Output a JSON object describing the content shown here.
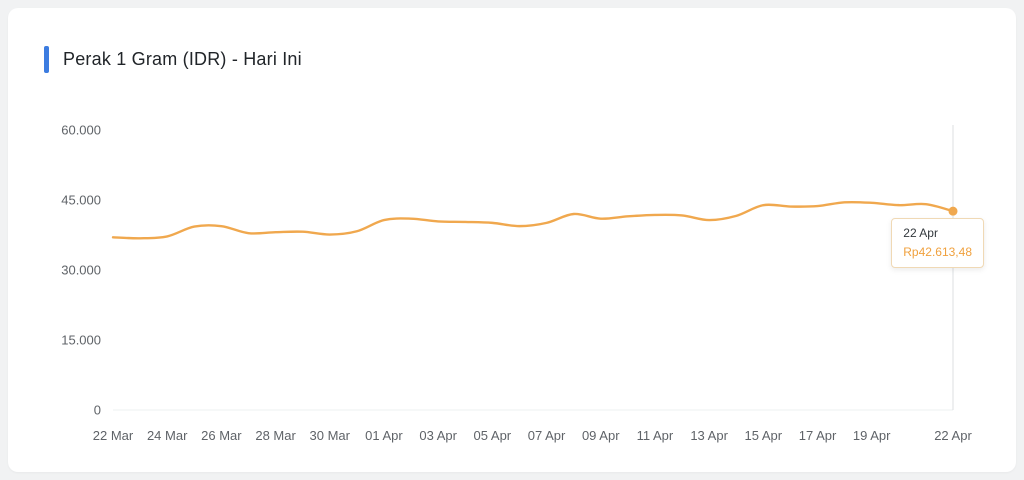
{
  "header": {
    "title": "Perak 1 Gram (IDR) - Hari Ini",
    "accent_color": "#3c7ce0"
  },
  "tooltip": {
    "date": "22 Apr",
    "value": "Rp42.613,48",
    "value_color": "#f0a13e"
  },
  "chart_data": {
    "type": "line",
    "title": "Perak 1 Gram (IDR) - Hari Ini",
    "x": [
      "22 Mar",
      "23 Mar",
      "24 Mar",
      "25 Mar",
      "26 Mar",
      "27 Mar",
      "28 Mar",
      "29 Mar",
      "30 Mar",
      "31 Mar",
      "01 Apr",
      "02 Apr",
      "03 Apr",
      "04 Apr",
      "05 Apr",
      "06 Apr",
      "07 Apr",
      "08 Apr",
      "09 Apr",
      "10 Apr",
      "11 Apr",
      "12 Apr",
      "13 Apr",
      "14 Apr",
      "15 Apr",
      "16 Apr",
      "17 Apr",
      "18 Apr",
      "19 Apr",
      "20 Apr",
      "21 Apr",
      "22 Apr"
    ],
    "values": [
      37000,
      36800,
      37200,
      39300,
      39400,
      37900,
      38100,
      38200,
      37600,
      38300,
      40700,
      41000,
      40400,
      40300,
      40100,
      39400,
      40100,
      42000,
      41000,
      41500,
      41800,
      41700,
      40700,
      41600,
      43900,
      43600,
      43700,
      44500,
      44400,
      43900,
      44100,
      42613.48
    ],
    "last_value_label": "Rp42.613,48",
    "ylim": [
      0,
      60000
    ],
    "yticks": [
      0,
      15000,
      30000,
      45000,
      60000
    ],
    "ytick_labels": [
      "0",
      "15.000",
      "30.000",
      "45.000",
      "60.000"
    ],
    "xtick_labels": [
      "22 Mar",
      "24 Mar",
      "26 Mar",
      "28 Mar",
      "30 Mar",
      "01 Apr",
      "03 Apr",
      "05 Apr",
      "07 Apr",
      "09 Apr",
      "11 Apr",
      "13 Apr",
      "15 Apr",
      "17 Apr",
      "19 Apr",
      "22 Apr"
    ],
    "xtick_indices": [
      0,
      2,
      4,
      6,
      8,
      10,
      12,
      14,
      16,
      18,
      20,
      22,
      24,
      26,
      28,
      31
    ],
    "line_color": "#f0a84e",
    "marker_color": "#f0a84e",
    "axis_label_color": "#5f6368",
    "crosshair_color": "#dcdfe2",
    "grid": false,
    "legend": false
  }
}
